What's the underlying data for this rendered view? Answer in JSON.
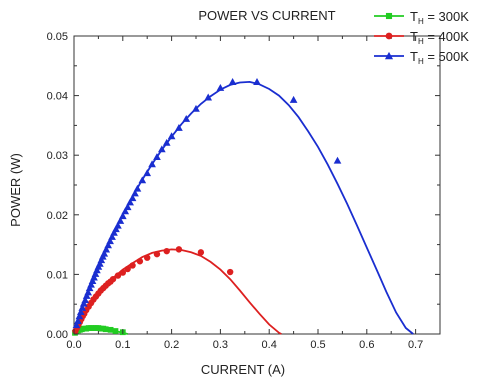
{
  "chart_data": {
    "type": "scatter",
    "title": "POWER VS CURRENT",
    "xlabel": "CURRENT (A)",
    "ylabel": "POWER (W)",
    "xlim": [
      0.0,
      0.75
    ],
    "ylim": [
      0.0,
      0.05
    ],
    "x_ticks": [
      "0.0",
      "0.1",
      "0.2",
      "0.3",
      "0.4",
      "0.5",
      "0.6",
      "0.7"
    ],
    "y_ticks": [
      "0.00",
      "0.01",
      "0.02",
      "0.03",
      "0.04",
      "0.05"
    ],
    "x_tick_values": [
      0.0,
      0.1,
      0.2,
      0.3,
      0.4,
      0.5,
      0.6,
      0.7
    ],
    "y_tick_values": [
      0.0,
      0.01,
      0.02,
      0.03,
      0.04,
      0.05
    ],
    "grid": false,
    "legend_position": "top-right",
    "series": [
      {
        "name": "T_H = 300K",
        "legend_main": "T",
        "legend_sub": "H",
        "legend_rest": " = 300K",
        "color": "#22cc22",
        "marker": "square",
        "points": [
          [
            0.002,
            0.0002
          ],
          [
            0.005,
            0.0004
          ],
          [
            0.008,
            0.0006
          ],
          [
            0.012,
            0.0007
          ],
          [
            0.016,
            0.0008
          ],
          [
            0.02,
            0.0009
          ],
          [
            0.025,
            0.0009
          ],
          [
            0.03,
            0.001
          ],
          [
            0.035,
            0.001
          ],
          [
            0.04,
            0.001
          ],
          [
            0.045,
            0.001
          ],
          [
            0.05,
            0.001
          ],
          [
            0.055,
            0.0009
          ],
          [
            0.06,
            0.0009
          ],
          [
            0.065,
            0.0008
          ],
          [
            0.075,
            0.0007
          ],
          [
            0.085,
            0.0005
          ],
          [
            0.1,
            0.0003
          ]
        ],
        "fit": [
          [
            0.0,
            0.0
          ],
          [
            0.01,
            0.00065
          ],
          [
            0.02,
            0.0009
          ],
          [
            0.03,
            0.001
          ],
          [
            0.04,
            0.001
          ],
          [
            0.05,
            0.00095
          ],
          [
            0.06,
            0.00088
          ],
          [
            0.07,
            0.00075
          ],
          [
            0.08,
            0.00058
          ],
          [
            0.09,
            0.0004
          ],
          [
            0.1,
            0.00022
          ],
          [
            0.11,
            0.0
          ]
        ]
      },
      {
        "name": "T_H = 400K",
        "legend_main": "T",
        "legend_sub": "H",
        "legend_rest": " = 400K",
        "color": "#dd2020",
        "marker": "circle",
        "points": [
          [
            0.003,
            0.0005
          ],
          [
            0.006,
            0.001
          ],
          [
            0.009,
            0.0015
          ],
          [
            0.012,
            0.002
          ],
          [
            0.015,
            0.0025
          ],
          [
            0.018,
            0.003
          ],
          [
            0.021,
            0.0034
          ],
          [
            0.025,
            0.004
          ],
          [
            0.03,
            0.0046
          ],
          [
            0.035,
            0.0052
          ],
          [
            0.04,
            0.0058
          ],
          [
            0.045,
            0.0063
          ],
          [
            0.05,
            0.0068
          ],
          [
            0.055,
            0.0073
          ],
          [
            0.06,
            0.0077
          ],
          [
            0.065,
            0.0081
          ],
          [
            0.07,
            0.0085
          ],
          [
            0.075,
            0.0088
          ],
          [
            0.08,
            0.0092
          ],
          [
            0.09,
            0.0098
          ],
          [
            0.1,
            0.0103
          ],
          [
            0.11,
            0.0109
          ],
          [
            0.12,
            0.0115
          ],
          [
            0.135,
            0.0122
          ],
          [
            0.15,
            0.0128
          ],
          [
            0.17,
            0.0134
          ],
          [
            0.19,
            0.0139
          ],
          [
            0.215,
            0.0142
          ],
          [
            0.26,
            0.0137
          ],
          [
            0.32,
            0.0104
          ]
        ],
        "fit": [
          [
            0.0,
            0.0
          ],
          [
            0.02,
            0.0033
          ],
          [
            0.04,
            0.0058
          ],
          [
            0.06,
            0.0078
          ],
          [
            0.08,
            0.0094
          ],
          [
            0.1,
            0.0108
          ],
          [
            0.12,
            0.0119
          ],
          [
            0.14,
            0.0129
          ],
          [
            0.16,
            0.0136
          ],
          [
            0.18,
            0.014
          ],
          [
            0.2,
            0.0142
          ],
          [
            0.22,
            0.0141
          ],
          [
            0.24,
            0.0137
          ],
          [
            0.26,
            0.0131
          ],
          [
            0.28,
            0.0121
          ],
          [
            0.3,
            0.0108
          ],
          [
            0.32,
            0.0092
          ],
          [
            0.34,
            0.0073
          ],
          [
            0.36,
            0.0053
          ],
          [
            0.38,
            0.0034
          ],
          [
            0.4,
            0.0016
          ],
          [
            0.42,
            0.0002
          ],
          [
            0.425,
            0.0
          ]
        ]
      },
      {
        "name": "T_H = 500K",
        "legend_main": "T",
        "legend_sub": "H",
        "legend_rest": " = 500K",
        "color": "#1a2ed0",
        "marker": "triangle",
        "points": [
          [
            0.005,
            0.0015
          ],
          [
            0.008,
            0.0022
          ],
          [
            0.011,
            0.003
          ],
          [
            0.014,
            0.0037
          ],
          [
            0.017,
            0.0044
          ],
          [
            0.02,
            0.0051
          ],
          [
            0.023,
            0.0057
          ],
          [
            0.026,
            0.0064
          ],
          [
            0.029,
            0.007
          ],
          [
            0.032,
            0.0077
          ],
          [
            0.035,
            0.0083
          ],
          [
            0.038,
            0.0089
          ],
          [
            0.041,
            0.0095
          ],
          [
            0.044,
            0.0101
          ],
          [
            0.047,
            0.0107
          ],
          [
            0.05,
            0.0113
          ],
          [
            0.053,
            0.0118
          ],
          [
            0.056,
            0.0124
          ],
          [
            0.059,
            0.013
          ],
          [
            0.062,
            0.0135
          ],
          [
            0.066,
            0.0142
          ],
          [
            0.07,
            0.0149
          ],
          [
            0.074,
            0.0156
          ],
          [
            0.078,
            0.0163
          ],
          [
            0.082,
            0.017
          ],
          [
            0.086,
            0.0176
          ],
          [
            0.09,
            0.0182
          ],
          [
            0.095,
            0.019
          ],
          [
            0.1,
            0.0198
          ],
          [
            0.105,
            0.0206
          ],
          [
            0.11,
            0.0213
          ],
          [
            0.115,
            0.0221
          ],
          [
            0.12,
            0.0228
          ],
          [
            0.125,
            0.0236
          ],
          [
            0.13,
            0.0244
          ],
          [
            0.14,
            0.0258
          ],
          [
            0.15,
            0.027
          ],
          [
            0.16,
            0.0285
          ],
          [
            0.17,
            0.0297
          ],
          [
            0.18,
            0.031
          ],
          [
            0.19,
            0.0321
          ],
          [
            0.2,
            0.0332
          ],
          [
            0.215,
            0.0346
          ],
          [
            0.23,
            0.0361
          ],
          [
            0.25,
            0.0378
          ],
          [
            0.275,
            0.0397
          ],
          [
            0.3,
            0.0413
          ],
          [
            0.325,
            0.0423
          ],
          [
            0.375,
            0.0423
          ],
          [
            0.45,
            0.0393
          ],
          [
            0.54,
            0.0291
          ]
        ],
        "fit": [
          [
            0.0,
            0.0
          ],
          [
            0.02,
            0.0055
          ],
          [
            0.04,
            0.0098
          ],
          [
            0.06,
            0.0135
          ],
          [
            0.08,
            0.0169
          ],
          [
            0.1,
            0.0201
          ],
          [
            0.12,
            0.0231
          ],
          [
            0.14,
            0.0259
          ],
          [
            0.16,
            0.0285
          ],
          [
            0.18,
            0.0309
          ],
          [
            0.2,
            0.0331
          ],
          [
            0.22,
            0.0352
          ],
          [
            0.24,
            0.037
          ],
          [
            0.26,
            0.0386
          ],
          [
            0.28,
            0.0399
          ],
          [
            0.3,
            0.041
          ],
          [
            0.32,
            0.0418
          ],
          [
            0.34,
            0.0422
          ],
          [
            0.36,
            0.0423
          ],
          [
            0.38,
            0.0419
          ],
          [
            0.4,
            0.0411
          ],
          [
            0.42,
            0.04
          ],
          [
            0.44,
            0.0384
          ],
          [
            0.46,
            0.0364
          ],
          [
            0.48,
            0.034
          ],
          [
            0.5,
            0.0314
          ],
          [
            0.52,
            0.0284
          ],
          [
            0.54,
            0.0252
          ],
          [
            0.56,
            0.0218
          ],
          [
            0.58,
            0.0182
          ],
          [
            0.6,
            0.0145
          ],
          [
            0.62,
            0.0108
          ],
          [
            0.64,
            0.0071
          ],
          [
            0.66,
            0.0036
          ],
          [
            0.68,
            0.001
          ],
          [
            0.695,
            0.0
          ]
        ]
      }
    ]
  }
}
